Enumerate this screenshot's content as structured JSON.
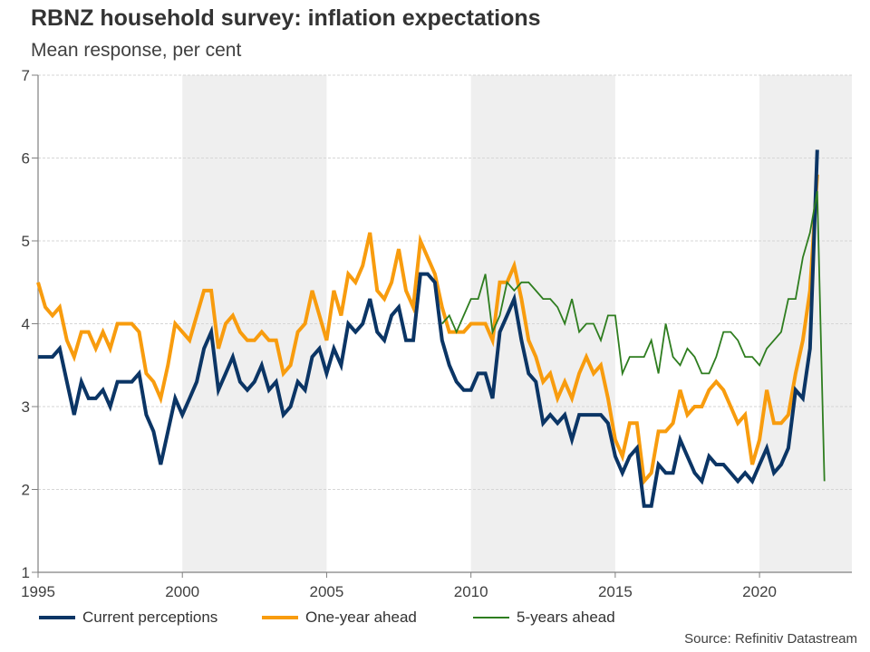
{
  "header": {
    "title": "RBNZ household survey: inflation expectations",
    "subtitle": "Mean response, per cent"
  },
  "footer": {
    "source": "Source: Refinitiv Datastream"
  },
  "chart_data": {
    "type": "line",
    "title": "RBNZ household survey: inflation expectations",
    "subtitle": "Mean response, per cent",
    "xlabel": "",
    "ylabel": "",
    "ylim": [
      1,
      7
    ],
    "xlim": [
      1995,
      2023.2
    ],
    "yticks": [
      1,
      2,
      3,
      4,
      5,
      6,
      7
    ],
    "xticks": [
      1995,
      2000,
      2005,
      2010,
      2015,
      2020
    ],
    "grid": true,
    "legend_position": "bottom-left",
    "shaded_periods": [
      [
        2000,
        2005
      ],
      [
        2010,
        2015
      ],
      [
        2020,
        2023.2
      ]
    ],
    "frequency": "quarterly",
    "series": [
      {
        "name": "Current perceptions",
        "color": "#0b3565",
        "start": 1995.0,
        "values": [
          3.6,
          3.6,
          3.6,
          3.7,
          3.3,
          2.9,
          3.3,
          3.1,
          3.1,
          3.2,
          3.0,
          3.3,
          3.3,
          3.3,
          3.4,
          2.9,
          2.7,
          2.3,
          2.7,
          3.1,
          2.9,
          3.1,
          3.3,
          3.7,
          3.9,
          3.2,
          3.4,
          3.6,
          3.3,
          3.2,
          3.3,
          3.5,
          3.2,
          3.3,
          2.9,
          3.0,
          3.3,
          3.2,
          3.6,
          3.7,
          3.4,
          3.7,
          3.5,
          4.0,
          3.9,
          4.0,
          4.3,
          3.9,
          3.8,
          4.1,
          4.2,
          3.8,
          3.8,
          4.6,
          4.6,
          4.5,
          3.8,
          3.5,
          3.3,
          3.2,
          3.2,
          3.4,
          3.4,
          3.1,
          3.9,
          4.1,
          4.3,
          3.8,
          3.4,
          3.3,
          2.8,
          2.9,
          2.8,
          2.9,
          2.6,
          2.9,
          2.9,
          2.9,
          2.9,
          2.8,
          2.4,
          2.2,
          2.4,
          2.5,
          1.8,
          1.8,
          2.3,
          2.2,
          2.2,
          2.6,
          2.4,
          2.2,
          2.1,
          2.4,
          2.3,
          2.3,
          2.2,
          2.1,
          2.2,
          2.1,
          2.3,
          2.5,
          2.2,
          2.3,
          2.5,
          3.2,
          3.1,
          3.7,
          6.1
        ]
      },
      {
        "name": "One-year ahead",
        "color": "#f89c0e",
        "start": 1995.0,
        "values": [
          4.5,
          4.2,
          4.1,
          4.2,
          3.8,
          3.6,
          3.9,
          3.9,
          3.7,
          3.9,
          3.7,
          4.0,
          4.0,
          4.0,
          3.9,
          3.4,
          3.3,
          3.1,
          3.5,
          4.0,
          3.9,
          3.8,
          4.1,
          4.4,
          4.4,
          3.7,
          4.0,
          4.1,
          3.9,
          3.8,
          3.8,
          3.9,
          3.8,
          3.8,
          3.4,
          3.5,
          3.9,
          4.0,
          4.4,
          4.1,
          3.8,
          4.4,
          4.1,
          4.6,
          4.5,
          4.7,
          5.1,
          4.4,
          4.3,
          4.5,
          4.9,
          4.4,
          4.2,
          5.0,
          4.8,
          4.6,
          4.2,
          3.9,
          3.9,
          3.9,
          4.0,
          4.0,
          4.0,
          3.8,
          4.5,
          4.5,
          4.7,
          4.3,
          3.8,
          3.6,
          3.3,
          3.4,
          3.1,
          3.3,
          3.1,
          3.4,
          3.6,
          3.4,
          3.5,
          3.1,
          2.6,
          2.4,
          2.8,
          2.8,
          2.1,
          2.2,
          2.7,
          2.7,
          2.8,
          3.2,
          2.9,
          3.0,
          3.0,
          3.2,
          3.3,
          3.2,
          3.0,
          2.8,
          2.9,
          2.3,
          2.6,
          3.2,
          2.8,
          2.8,
          2.9,
          3.4,
          3.8,
          4.4,
          5.8
        ]
      },
      {
        "name": "5-years ahead",
        "color": "#2e7d1f",
        "start": 2009.0,
        "values": [
          4.0,
          4.1,
          3.9,
          4.1,
          4.3,
          4.3,
          4.6,
          3.9,
          4.1,
          4.5,
          4.4,
          4.5,
          4.5,
          4.4,
          4.3,
          4.3,
          4.2,
          4.0,
          4.3,
          3.9,
          4.0,
          4.0,
          3.8,
          4.1,
          4.1,
          3.4,
          3.6,
          3.6,
          3.6,
          3.8,
          3.4,
          4.0,
          3.6,
          3.5,
          3.7,
          3.6,
          3.4,
          3.4,
          3.6,
          3.9,
          3.9,
          3.8,
          3.6,
          3.6,
          3.5,
          3.7,
          3.8,
          3.9,
          4.3,
          4.3,
          4.8,
          5.1,
          5.6,
          2.1
        ]
      }
    ]
  }
}
